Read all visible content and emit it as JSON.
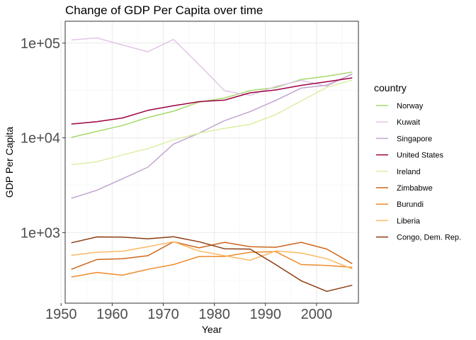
{
  "chart_data": {
    "type": "line",
    "title": "Change of GDP Per Capita over time",
    "xlabel": "Year",
    "ylabel": "GDP Per Capita",
    "y_scale": "log10",
    "xlim": [
      1950.8,
      2008.2
    ],
    "ylim": [
      180,
      170000
    ],
    "x_ticks": [
      1950,
      1960,
      1970,
      1980,
      1990,
      2000
    ],
    "x_tick_labels": [
      "1950",
      "1960",
      "1970",
      "1980",
      "1990",
      "2000"
    ],
    "y_ticks": [
      1000,
      10000,
      100000
    ],
    "y_tick_labels": [
      "1e+03",
      "1e+04",
      "1e+05"
    ],
    "grid": true,
    "legend": {
      "title": "country",
      "position": "right"
    },
    "x": [
      1952,
      1957,
      1962,
      1967,
      1972,
      1977,
      1982,
      1987,
      1992,
      1997,
      2002,
      2007
    ],
    "series": [
      {
        "name": "Norway",
        "color": "#a6d96a",
        "values": [
          10100,
          11700,
          13500,
          16400,
          19100,
          23800,
          26300,
          31500,
          33900,
          41300,
          44700,
          49400
        ]
      },
      {
        "name": "Kuwait",
        "color": "#e2c6e6",
        "values": [
          108000,
          113500,
          95500,
          80900,
          109400,
          59300,
          31400,
          28100,
          34900,
          40300,
          35100,
          47300
        ]
      },
      {
        "name": "Singapore",
        "color": "#c2a5cf",
        "values": [
          2300,
          2800,
          3700,
          4900,
          8600,
          11200,
          15200,
          18900,
          24800,
          33500,
          36000,
          47100
        ]
      },
      {
        "name": "United States",
        "color": "#9e0142",
        "values": [
          14000,
          14800,
          16200,
          19500,
          21800,
          24100,
          25000,
          29900,
          32000,
          35800,
          39100,
          42900
        ]
      },
      {
        "name": "Ireland",
        "color": "#d9f0a3",
        "values": [
          5200,
          5600,
          6600,
          7700,
          9500,
          11200,
          12600,
          13900,
          17600,
          24500,
          34100,
          40700
        ]
      },
      {
        "name": "Zimbabwe",
        "color": "#d0661b",
        "values": [
          410,
          520,
          530,
          570,
          800,
          690,
          790,
          710,
          700,
          790,
          670,
          470
        ]
      },
      {
        "name": "Burundi",
        "color": "#ee8a2a",
        "values": [
          340,
          380,
          355,
          410,
          460,
          560,
          560,
          620,
          630,
          460,
          450,
          430
        ]
      },
      {
        "name": "Liberia",
        "color": "#fdb863",
        "values": [
          575,
          620,
          635,
          710,
          800,
          640,
          570,
          510,
          640,
          610,
          530,
          415
        ]
      },
      {
        "name": "Congo, Dem. Rep.",
        "color": "#8c3c10",
        "values": [
          780,
          900,
          895,
          860,
          905,
          800,
          675,
          670,
          460,
          310,
          240,
          278
        ]
      }
    ]
  }
}
